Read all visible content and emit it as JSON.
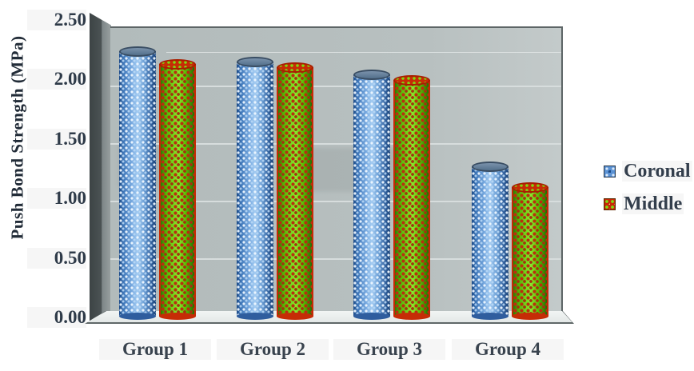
{
  "chart_data": {
    "type": "bar",
    "style": "3d-cylinder",
    "title": "",
    "categories": [
      "Group 1",
      "Group 2",
      "Group 3",
      "Group 4"
    ],
    "series": [
      {
        "name": "Coronal",
        "values": [
          2.3,
          2.21,
          2.1,
          1.3
        ],
        "fill": "#4d82c4",
        "dot_color": "#d8ecff"
      },
      {
        "name": "Middle",
        "values": [
          2.19,
          2.16,
          2.05,
          1.12
        ],
        "fill": "#64cc08",
        "dot_color": "#c22b0c",
        "outline": "#d42a00"
      }
    ],
    "xlabel": "",
    "ylabel": "Push Bond Strength (MPa)",
    "ylim": [
      0,
      2.5
    ],
    "ytick_step": 0.5,
    "yticks": [
      "0.00",
      "0.50",
      "1.00",
      "1.50",
      "2.00",
      "2.50"
    ],
    "grid": true,
    "gridline_color": "#d7dddd",
    "wall_color": "#b8c0c0",
    "legend_position": "right"
  },
  "legend": {
    "items": [
      {
        "label": "Coronal",
        "swatch": "blue-dot-pattern"
      },
      {
        "label": "Middle",
        "swatch": "red-green-dot-pattern"
      }
    ]
  }
}
